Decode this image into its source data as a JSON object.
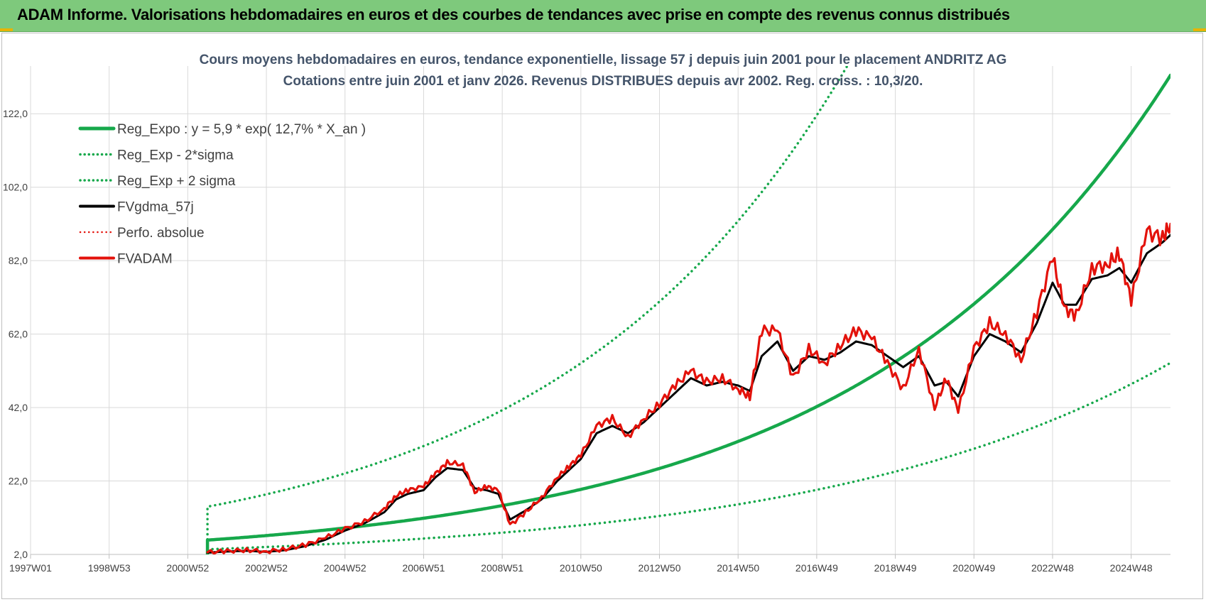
{
  "header": {
    "title": "ADAM Informe. Valorisations hebdomadaires en euros et des courbes de tendances avec prise en compte des revenus connus distribués"
  },
  "colors": {
    "header_bg": "#7ec97c",
    "green": "#16a84b",
    "black": "#000000",
    "red": "#e3120b",
    "grid": "#d9d9d9",
    "title_text": "#44546a"
  },
  "chart_data": {
    "type": "line",
    "title": "Cours moyens hebdomadaires en euros, tendance exponentielle, lissage 57 j depuis juin 2001 pour le placement ANDRITZ AG",
    "subtitle": "Cotations entre juin 2001 et janv 2026. Revenus DISTRIBUES depuis avr 2002. Reg. croiss. : 10,3/20.",
    "xlabel": "",
    "ylabel": "",
    "x_range": [
      1997.0,
      2026.0
    ],
    "ylim": [
      2.0,
      135.0
    ],
    "y_ticks": [
      2,
      22,
      42,
      62,
      82,
      102,
      122
    ],
    "y_tick_labels": [
      "2,0",
      "22,0",
      "42,0",
      "62,0",
      "82,0",
      "102,0",
      "122,0"
    ],
    "x_ticks": [
      1997.0,
      1999.0,
      2001.0,
      2003.0,
      2005.0,
      2007.0,
      2009.0,
      2011.0,
      2013.0,
      2015.0,
      2017.0,
      2019.0,
      2021.0,
      2023.0,
      2025.0
    ],
    "x_tick_labels": [
      "1997W01",
      "1998W53",
      "2000W52",
      "2002W52",
      "2004W52",
      "2006W51",
      "2008W51",
      "2010W50",
      "2012W50",
      "2014W50",
      "2016W49",
      "2018W49",
      "2020W49",
      "2022W48",
      "2024W48"
    ],
    "legend": {
      "position": "top-left",
      "entries": [
        "Reg_Expo : y = 5,9 * exp( 12,7% *  X_an )",
        "Reg_Exp - 2*sigma",
        "Reg_Exp + 2 sigma",
        "FVgdma_57j",
        "Perfo. absolue",
        "FVADAM"
      ]
    },
    "series": [
      {
        "name": "Reg_Expo",
        "style": "solid",
        "color": "#16a84b",
        "x_start": 2001.5,
        "x_end": 2026.0,
        "formula": "5.9*exp(0.127*(x-2001.5))"
      },
      {
        "name": "Reg_Exp - 2*sigma",
        "style": "dotted",
        "color": "#16a84b",
        "x_start": 2001.5,
        "x_end": 2026.0,
        "formula": "3.4*exp(0.113*(x-2001.5))"
      },
      {
        "name": "Reg_Exp + 2 sigma",
        "style": "dotted",
        "color": "#16a84b",
        "x_start": 2001.5,
        "x_end": 2026.0,
        "formula": "15*exp(0.135*(x-2001.5))",
        "clipped_at": 135
      },
      {
        "name": "FVgdma_57j",
        "style": "solid",
        "color": "#000000",
        "x": [
          2001.5,
          2002.0,
          2002.5,
          2003.0,
          2003.5,
          2004.0,
          2004.5,
          2005.0,
          2005.5,
          2006.0,
          2006.3,
          2006.6,
          2007.0,
          2007.3,
          2007.6,
          2008.0,
          2008.3,
          2008.6,
          2008.9,
          2009.2,
          2009.6,
          2010.0,
          2010.4,
          2010.7,
          2011.0,
          2011.4,
          2011.8,
          2012.2,
          2012.6,
          2013.0,
          2013.4,
          2013.8,
          2014.2,
          2014.6,
          2015.0,
          2015.3,
          2015.6,
          2016.0,
          2016.4,
          2016.8,
          2017.2,
          2017.6,
          2018.0,
          2018.4,
          2018.8,
          2019.2,
          2019.6,
          2020.0,
          2020.3,
          2020.6,
          2021.0,
          2021.4,
          2021.8,
          2022.2,
          2022.6,
          2023.0,
          2023.3,
          2023.6,
          2024.0,
          2024.4,
          2024.7,
          2025.0,
          2025.4,
          2025.8,
          2026.0
        ],
        "values": [
          2.5,
          2.8,
          3.0,
          2.7,
          3.2,
          4.3,
          6.0,
          8.5,
          10.5,
          13.5,
          17.0,
          18.5,
          19.5,
          23.0,
          25.5,
          25.0,
          20.0,
          19.5,
          18.5,
          11.5,
          14.0,
          17.0,
          22.0,
          25.0,
          28.0,
          35.0,
          37.0,
          35.0,
          38.0,
          42.0,
          46.0,
          50.0,
          48.0,
          49.0,
          48.0,
          46.5,
          56.0,
          60.0,
          52.0,
          56.0,
          55.0,
          57.0,
          60.0,
          59.0,
          56.0,
          53.0,
          56.0,
          48.0,
          49.0,
          45.0,
          56.0,
          62.0,
          60.0,
          57.0,
          65.0,
          76.0,
          70.0,
          70.0,
          77.0,
          78.0,
          80.0,
          76.0,
          84.0,
          87.0,
          89.0
        ]
      },
      {
        "name": "Perfo. absolue",
        "style": "dotted",
        "color": "#e3120b",
        "x": [],
        "values": []
      },
      {
        "name": "FVADAM",
        "style": "solid",
        "color": "#e3120b",
        "x": [
          2001.5,
          2002.0,
          2002.5,
          2003.0,
          2003.5,
          2004.0,
          2004.5,
          2005.0,
          2005.5,
          2006.0,
          2006.3,
          2006.6,
          2007.0,
          2007.3,
          2007.6,
          2008.0,
          2008.3,
          2008.6,
          2008.9,
          2009.2,
          2009.6,
          2010.0,
          2010.4,
          2010.7,
          2011.0,
          2011.4,
          2011.8,
          2012.2,
          2012.6,
          2013.0,
          2013.4,
          2013.8,
          2014.2,
          2014.6,
          2015.0,
          2015.3,
          2015.6,
          2016.0,
          2016.4,
          2016.8,
          2017.2,
          2017.6,
          2018.0,
          2018.4,
          2018.8,
          2019.2,
          2019.6,
          2020.0,
          2020.3,
          2020.6,
          2021.0,
          2021.4,
          2021.8,
          2022.2,
          2022.6,
          2023.0,
          2023.3,
          2023.6,
          2024.0,
          2024.4,
          2024.7,
          2025.0,
          2025.4,
          2025.8,
          2026.0
        ],
        "values": [
          2.6,
          2.9,
          3.2,
          2.8,
          3.5,
          4.6,
          6.5,
          9.0,
          11.0,
          14.5,
          18.0,
          19.5,
          20.5,
          24.0,
          27.0,
          26.5,
          19.0,
          20.5,
          19.5,
          10.0,
          13.5,
          17.5,
          23.0,
          26.0,
          29.0,
          37.0,
          39.0,
          34.0,
          39.0,
          43.0,
          48.0,
          52.0,
          49.0,
          50.0,
          47.0,
          45.0,
          63.0,
          63.0,
          50.0,
          58.0,
          54.0,
          59.0,
          63.0,
          61.0,
          54.0,
          47.0,
          58.0,
          42.0,
          50.0,
          41.0,
          58.0,
          65.0,
          62.0,
          55.0,
          68.0,
          83.0,
          69.0,
          67.0,
          80.0,
          81.0,
          84.0,
          71.0,
          90.0,
          88.0,
          92.0
        ]
      }
    ]
  }
}
